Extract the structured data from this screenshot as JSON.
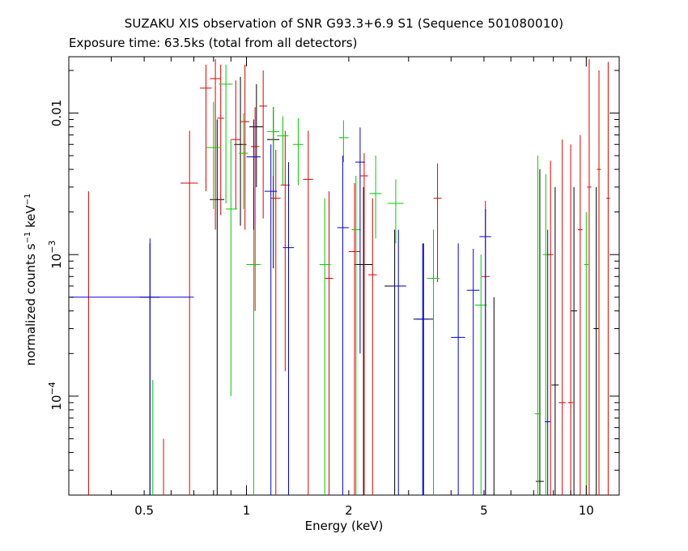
{
  "chart_data": {
    "type": "scatter",
    "title": "SUZAKU XIS observation of SNR G93.3+6.9 S1 (Sequence 501080010)",
    "subtitle": "Exposure time: 63.5ks (total from all detectors)",
    "xlabel": "Energy (keV)",
    "ylabel": {
      "base": "normalized counts s",
      "exp1": "−1",
      "mid": " keV",
      "exp2": "−1"
    },
    "xscale": "log",
    "yscale": "log",
    "xlim": [
      0.3,
      12.5
    ],
    "ylim": [
      2e-05,
      0.025
    ],
    "xticks": [
      {
        "value": 0.5,
        "label": "0.5"
      },
      {
        "value": 1,
        "label": "1"
      },
      {
        "value": 2,
        "label": "2"
      },
      {
        "value": 5,
        "label": "5"
      },
      {
        "value": 10,
        "label": "10"
      }
    ],
    "yticks": [
      {
        "value": 0.0001,
        "base": "10",
        "exp": "−4"
      },
      {
        "value": 0.001,
        "base": "10",
        "exp": "−3"
      },
      {
        "value": 0.01,
        "label": "0.01"
      }
    ],
    "colors": {
      "black": "#000000",
      "red": "#e00000",
      "green": "#00cc00",
      "blue": "#0000e0"
    },
    "series": [
      {
        "color": "#000000",
        "points": [
          [
            0.52,
            0.0005,
            0.485,
            0.555,
            2e-05,
            0.0012
          ],
          [
            0.82,
            0.00245,
            0.78,
            0.86,
            2e-05,
            0.009
          ],
          [
            0.96,
            0.006,
            0.92,
            1.0,
            0.0016,
            0.018
          ],
          [
            1.07,
            0.008,
            1.02,
            1.12,
            0.003,
            0.016
          ],
          [
            1.2,
            0.0065,
            1.15,
            1.25,
            0.0008,
            0.011
          ],
          [
            2.21,
            0.00085,
            2.08,
            2.35,
            2e-05,
            0.003
          ],
          [
            2.73,
            0.0006,
            2.55,
            2.95,
            2e-05,
            0.0015
          ],
          [
            3.32,
            0.00035,
            3.1,
            3.55,
            2e-05,
            0.0012
          ],
          [
            5.35,
            2e-05,
            5.35,
            5.35,
            2e-05,
            0.0005
          ],
          [
            7.3,
            2.5e-05,
            7.1,
            7.5,
            2e-05,
            0.004
          ],
          [
            8.1,
            0.00012,
            7.9,
            8.3,
            2e-05,
            0.003
          ],
          [
            9.2,
            0.0004,
            9.0,
            9.4,
            2e-05,
            0.003
          ],
          [
            10.7,
            0.0003,
            10.5,
            10.9,
            2e-05,
            0.003
          ]
        ]
      },
      {
        "color": "#e00000",
        "points": [
          [
            0.343,
            2e-05,
            0.343,
            0.343,
            2e-05,
            0.0028
          ],
          [
            0.57,
            2e-05,
            0.57,
            0.57,
            2e-05,
            5e-05
          ],
          [
            0.68,
            0.0032,
            0.64,
            0.72,
            2e-05,
            0.0075
          ],
          [
            0.76,
            0.015,
            0.73,
            0.79,
            0.0028,
            0.022
          ],
          [
            0.81,
            0.0175,
            0.78,
            0.84,
            0.0015,
            0.024
          ],
          [
            0.84,
            0.0092,
            0.82,
            0.86,
            0.0019,
            0.022
          ],
          [
            0.93,
            0.0065,
            0.9,
            0.96,
            0.0021,
            0.017
          ],
          [
            0.99,
            0.0087,
            0.96,
            1.02,
            0.0015,
            0.022
          ],
          [
            1.06,
            0.0058,
            1.03,
            1.09,
            0.0004,
            0.011
          ],
          [
            1.12,
            0.0112,
            1.09,
            1.15,
            0.0018,
            0.02
          ],
          [
            1.22,
            0.0025,
            1.18,
            1.26,
            2e-05,
            0.0055
          ],
          [
            1.3,
            0.0031,
            1.26,
            1.34,
            0.00015,
            0.0075
          ],
          [
            1.52,
            0.0034,
            1.47,
            1.57,
            2e-05,
            0.0075
          ],
          [
            1.75,
            0.00068,
            1.7,
            1.8,
            2e-05,
            0.0028
          ],
          [
            2.08,
            0.00105,
            2.0,
            2.16,
            2e-05,
            0.0032
          ],
          [
            2.22,
            0.0036,
            2.16,
            2.28,
            2e-05,
            0.0052
          ],
          [
            2.35,
            0.00072,
            2.28,
            2.42,
            2e-05,
            0.0025
          ],
          [
            3.65,
            0.0025,
            3.55,
            3.75,
            0.00064,
            0.0044
          ],
          [
            5.05,
            0.0007,
            4.92,
            5.2,
            2e-05,
            0.0024
          ],
          [
            7.85,
            0.001,
            7.7,
            8.0,
            2e-05,
            0.0046
          ],
          [
            8.5,
            9e-05,
            8.3,
            8.7,
            2e-05,
            0.0065
          ],
          [
            9.0,
            9e-05,
            8.85,
            9.15,
            2e-05,
            0.006
          ],
          [
            9.6,
            0.0015,
            9.45,
            9.75,
            2e-05,
            0.007
          ],
          [
            10.2,
            0.003,
            10.05,
            10.35,
            2e-05,
            0.024
          ],
          [
            10.9,
            0.004,
            10.75,
            11.05,
            2e-05,
            0.02
          ],
          [
            11.6,
            0.0025,
            11.45,
            11.75,
            2e-05,
            0.023
          ]
        ]
      },
      {
        "color": "#00cc00",
        "points": [
          [
            0.53,
            2e-05,
            0.53,
            0.53,
            2e-05,
            0.00013
          ],
          [
            0.8,
            0.0057,
            0.76,
            0.84,
            0.0021,
            0.012
          ],
          [
            0.87,
            0.016,
            0.83,
            0.91,
            0.0023,
            0.022
          ],
          [
            0.9,
            0.0021,
            0.87,
            0.94,
            0.0001,
            0.0065
          ],
          [
            0.98,
            0.0052,
            0.95,
            1.01,
            0.0021,
            0.01
          ],
          [
            1.05,
            0.00085,
            1.0,
            1.1,
            2e-05,
            0.003
          ],
          [
            1.2,
            0.0074,
            1.15,
            1.25,
            0.0036,
            0.011
          ],
          [
            1.28,
            0.0069,
            1.23,
            1.33,
            0.0031,
            0.0095
          ],
          [
            1.42,
            0.006,
            1.37,
            1.47,
            0.0031,
            0.0092
          ],
          [
            1.7,
            0.00085,
            1.64,
            1.77,
            2e-05,
            0.0025
          ],
          [
            1.93,
            0.0067,
            1.87,
            2.0,
            0.0045,
            0.0089
          ],
          [
            2.1,
            0.0015,
            2.04,
            2.17,
            2e-05,
            0.0036
          ],
          [
            2.4,
            0.0027,
            2.3,
            2.5,
            0.0013,
            0.005
          ],
          [
            2.75,
            0.0023,
            2.6,
            2.9,
            0.0012,
            0.0034
          ],
          [
            3.55,
            0.00068,
            3.4,
            3.7,
            2e-05,
            0.0015
          ],
          [
            4.9,
            0.00044,
            4.7,
            5.1,
            2e-05,
            0.001
          ],
          [
            7.2,
            7.5e-05,
            7.05,
            7.35,
            2e-05,
            0.005
          ],
          [
            7.6,
            0.001,
            7.45,
            7.75,
            2e-05,
            0.0037
          ],
          [
            10.0,
            0.00085,
            9.85,
            10.15,
            2e-05,
            0.002
          ]
        ]
      },
      {
        "color": "#0000e0",
        "points": [
          [
            0.52,
            0.0005,
            0.303,
            0.7,
            2e-05,
            0.0013
          ],
          [
            1.05,
            0.0049,
            1.0,
            1.1,
            0.0015,
            0.009
          ],
          [
            1.18,
            0.0028,
            1.13,
            1.23,
            2e-05,
            0.006
          ],
          [
            1.33,
            0.00112,
            1.28,
            1.38,
            2e-05,
            0.0045
          ],
          [
            1.92,
            0.00155,
            1.85,
            2.0,
            2e-05,
            0.005
          ],
          [
            2.16,
            0.0045,
            2.09,
            2.23,
            0.0002,
            0.0079
          ],
          [
            2.8,
            0.0006,
            2.68,
            2.92,
            2e-05,
            0.0015
          ],
          [
            3.3,
            0.00035,
            3.17,
            3.44,
            2e-05,
            0.0012
          ],
          [
            4.2,
            0.00026,
            4.0,
            4.4,
            2e-05,
            0.0012
          ],
          [
            4.65,
            0.00056,
            4.45,
            4.85,
            2e-05,
            0.0011
          ],
          [
            5.05,
            0.00134,
            4.85,
            5.25,
            2e-05,
            0.0021
          ],
          [
            7.7,
            6.6e-05,
            7.55,
            7.85,
            2e-05,
            0.0015
          ]
        ]
      }
    ]
  }
}
